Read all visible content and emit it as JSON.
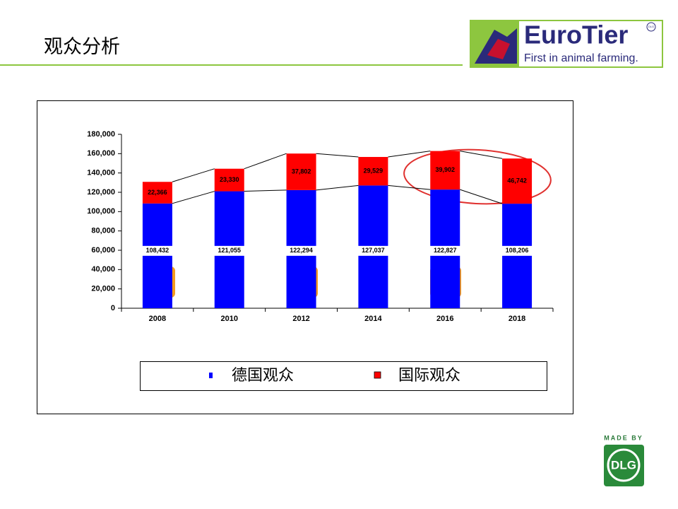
{
  "header": {
    "title": "观众分析"
  },
  "logo": {
    "brand": "EuroTier",
    "tagline": "First in animal farming.",
    "badge": "DLG",
    "made_by": "MADE BY",
    "dlg": "DLG"
  },
  "chart_data": {
    "type": "stacked_bar",
    "categories": [
      "2008",
      "2010",
      "2012",
      "2014",
      "2016",
      "2018"
    ],
    "series": [
      {
        "name": "德国观众",
        "color": "#0000ff",
        "values": [
          108432,
          121055,
          122294,
          127037,
          122827,
          108206
        ],
        "value_labels": [
          "108,432",
          "121,055",
          "122,294",
          "127,037",
          "122,827",
          "108,206"
        ]
      },
      {
        "name": "国际观众",
        "color": "#ff0000",
        "values": [
          22366,
          23330,
          37802,
          29529,
          39902,
          46742
        ],
        "value_labels": [
          "22,366",
          "23,330",
          "37,802",
          "29,529",
          "39,902",
          "46,742"
        ]
      }
    ],
    "ylim": [
      0,
      180000
    ],
    "yticks": [
      {
        "value": 0,
        "label": "0"
      },
      {
        "value": 20000,
        "label": "20,000"
      },
      {
        "value": 40000,
        "label": "40,000"
      },
      {
        "value": 60000,
        "label": "60,000"
      },
      {
        "value": 80000,
        "label": "80,000"
      },
      {
        "value": 100000,
        "label": "100,000"
      },
      {
        "value": 120000,
        "label": "120,000"
      },
      {
        "value": 140000,
        "label": "140,000"
      },
      {
        "value": 160000,
        "label": "160,000"
      },
      {
        "value": 180000,
        "label": "180,000"
      }
    ],
    "grid": false
  }
}
